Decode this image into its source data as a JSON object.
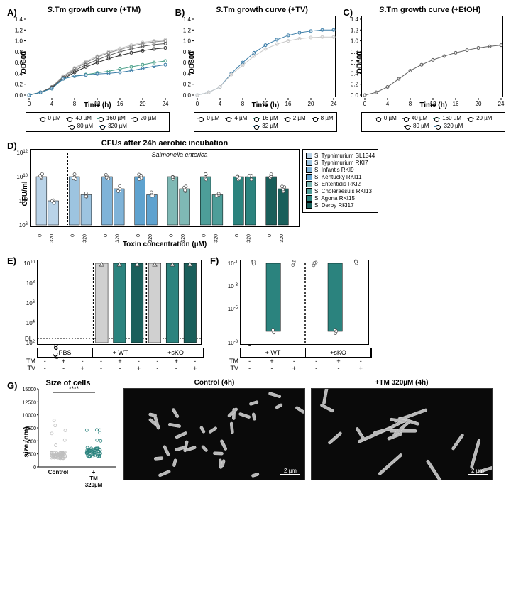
{
  "panelA": {
    "label": "A)",
    "title": "S.Tm growth curve (+TM)",
    "ylabel": "OD600",
    "xlabel": "Time (h)",
    "yticks": [
      "0.0",
      "0.2",
      "0.4",
      "0.6",
      "0.8",
      "1.0",
      "1.2",
      "1.4"
    ],
    "xticks": [
      "0",
      "4",
      "8",
      "12",
      "16",
      "20",
      "24"
    ],
    "legend": [
      {
        "label": "0 µM",
        "color": "#c9c9c9"
      },
      {
        "label": "40 µM",
        "color": "#5b5b5b"
      },
      {
        "label": "160 µM",
        "color": "#4aa08a"
      },
      {
        "label": "20 µM",
        "color": "#8a8a8a"
      },
      {
        "label": "80 µM",
        "color": "#2f2f2f"
      },
      {
        "label": "320 µM",
        "color": "#3b7da8"
      }
    ],
    "series": {
      "0": {
        "color": "#c9c9c9",
        "pts": [
          0,
          0.05,
          0.15,
          0.35,
          0.5,
          0.62,
          0.72,
          0.8,
          0.86,
          0.92,
          0.97,
          1.0,
          1.02
        ]
      },
      "20": {
        "color": "#8a8a8a",
        "pts": [
          0,
          0.05,
          0.15,
          0.34,
          0.48,
          0.6,
          0.7,
          0.78,
          0.84,
          0.9,
          0.95,
          0.98,
          1.0
        ]
      },
      "40": {
        "color": "#5b5b5b",
        "pts": [
          0,
          0.05,
          0.14,
          0.32,
          0.45,
          0.56,
          0.65,
          0.73,
          0.8,
          0.85,
          0.9,
          0.93,
          0.95
        ]
      },
      "80": {
        "color": "#2f2f2f",
        "pts": [
          0,
          0.05,
          0.13,
          0.3,
          0.42,
          0.52,
          0.6,
          0.67,
          0.73,
          0.78,
          0.82,
          0.85,
          0.87
        ]
      },
      "160": {
        "color": "#4aa08a",
        "pts": [
          0,
          0.05,
          0.12,
          0.3,
          0.35,
          0.38,
          0.41,
          0.44,
          0.48,
          0.52,
          0.56,
          0.6,
          0.63
        ]
      },
      "320": {
        "color": "#3b7da8",
        "pts": [
          0,
          0.05,
          0.12,
          0.3,
          0.35,
          0.37,
          0.39,
          0.4,
          0.42,
          0.45,
          0.49,
          0.53,
          0.56
        ]
      }
    }
  },
  "panelB": {
    "label": "B)",
    "title": "S.Tm growth curve (+TV)",
    "ylabel": "OD600",
    "xlabel": "Time (h)",
    "yticks": [
      "0.0",
      "0.2",
      "0.4",
      "0.6",
      "0.8",
      "1.0",
      "1.2",
      "1.4"
    ],
    "xticks": [
      "0",
      "4",
      "8",
      "12",
      "16",
      "20",
      "24"
    ],
    "legend": [
      {
        "label": "0 µM",
        "color": "#c9c9c9"
      },
      {
        "label": "4 µM",
        "color": "#5b5b5b"
      },
      {
        "label": "16 µM",
        "color": "#4aa08a"
      },
      {
        "label": "2 µM",
        "color": "#8a8a8a"
      },
      {
        "label": "8 µM",
        "color": "#2f2f2f"
      },
      {
        "label": "32 µM",
        "color": "#3b7da8"
      }
    ],
    "series": {
      "h": {
        "color": "#3b7da8",
        "pts": [
          0,
          0.05,
          0.15,
          0.4,
          0.6,
          0.78,
          0.92,
          1.02,
          1.1,
          1.15,
          1.18,
          1.2,
          1.2
        ]
      },
      "l": {
        "color": "#c9c9c9",
        "pts": [
          0,
          0.05,
          0.15,
          0.38,
          0.55,
          0.72,
          0.85,
          0.94,
          1.0,
          1.04,
          1.06,
          1.07,
          1.07
        ]
      }
    }
  },
  "panelC": {
    "label": "C)",
    "title": "S.Tm growth curve (+EtOH)",
    "ylabel": "OD600",
    "xlabel": "Time (h)",
    "yticks": [
      "0.0",
      "0.2",
      "0.4",
      "0.6",
      "0.8",
      "1.0",
      "1.2",
      "1.4"
    ],
    "xticks": [
      "0",
      "4",
      "8",
      "12",
      "16",
      "20",
      "24"
    ],
    "legend": [
      {
        "label": "0 µM",
        "color": "#c9c9c9"
      },
      {
        "label": "40 µM",
        "color": "#5b5b5b"
      },
      {
        "label": "160 µM",
        "color": "#4aa08a"
      },
      {
        "label": "20 µM",
        "color": "#8a8a8a"
      },
      {
        "label": "80 µM",
        "color": "#2f2f2f"
      },
      {
        "label": "320 µM",
        "color": "#3b7da8"
      }
    ],
    "series": {
      "all": {
        "color": "#606060",
        "pts": [
          0,
          0.05,
          0.15,
          0.3,
          0.45,
          0.56,
          0.65,
          0.72,
          0.78,
          0.83,
          0.87,
          0.9,
          0.92
        ]
      }
    }
  },
  "panelD": {
    "label": "D)",
    "title": "CFUs after 24h aerobic incubation",
    "subtitle": "Salmonella enterica",
    "ylabel": "CFU/ml",
    "xlabel": "Toxin concentration (µM)",
    "yticks": [
      "10^6",
      "10^8",
      "10^10",
      "10^12"
    ],
    "xvals": [
      "0",
      "320",
      "0",
      "320",
      "0",
      "320",
      "0",
      "320",
      "0",
      "320",
      "0",
      "320",
      "0",
      "320",
      "0",
      "320"
    ],
    "strains": [
      {
        "name": "S. Typhimurium SL1344",
        "color": "#b9d3e8"
      },
      {
        "name": "S. Typhimurium RKI7",
        "color": "#9dc4e0"
      },
      {
        "name": "S. Infantis RKI9",
        "color": "#7fb3d8"
      },
      {
        "name": "S. Kentucky RKI11",
        "color": "#5ea2cf"
      },
      {
        "name": "S. Enteritidis RKI2",
        "color": "#7fb9b5"
      },
      {
        "name": "S. Choleraesuis RKI13",
        "color": "#4d9e99"
      },
      {
        "name": "S. Agona RKI15",
        "color": "#2b837e"
      },
      {
        "name": "S. Derby RKI17",
        "color": "#1a5f5b"
      }
    ],
    "values0": [
      10,
      10,
      10,
      10,
      10,
      10,
      10,
      10
    ],
    "values320": [
      8,
      8.5,
      9,
      8.5,
      9,
      8.5,
      10,
      9
    ]
  },
  "panelE": {
    "label": "E)",
    "ylabel": "K. oxytoca CFU/ml in TLB",
    "yticks": [
      "10^2",
      "10^4",
      "10^6",
      "10^8",
      "10^10"
    ],
    "dl_label": "DL",
    "groups": [
      "PBS",
      "+ WT",
      "+sKO"
    ],
    "rows": [
      "TM",
      "TV"
    ],
    "matrix": [
      [
        "-",
        "+",
        "-"
      ],
      [
        "-",
        "-",
        "+"
      ]
    ],
    "bars": [
      {
        "grp": 0,
        "cond": 0,
        "val": null,
        "color": "#d0d0d0"
      },
      {
        "grp": 0,
        "cond": 1,
        "val": null,
        "color": "#2b837e"
      },
      {
        "grp": 0,
        "cond": 2,
        "val": null,
        "color": "#1a5f5b"
      },
      {
        "grp": 1,
        "cond": 0,
        "val": 10,
        "color": "#d0d0d0"
      },
      {
        "grp": 1,
        "cond": 1,
        "val": 10,
        "color": "#2b837e"
      },
      {
        "grp": 1,
        "cond": 2,
        "val": 10,
        "color": "#1a5f5b"
      },
      {
        "grp": 2,
        "cond": 0,
        "val": 10,
        "color": "#d0d0d0"
      },
      {
        "grp": 2,
        "cond": 1,
        "val": 10,
        "color": "#2b837e"
      },
      {
        "grp": 2,
        "cond": 2,
        "val": 10,
        "color": "#1a5f5b"
      }
    ]
  },
  "panelF": {
    "label": "F)",
    "ylabel": "competitive index",
    "yticks": [
      "10^-8",
      "10^-5",
      "10^-3",
      "10^-1"
    ],
    "groups": [
      "+ WT",
      "+sKO"
    ],
    "rows": [
      "TM",
      "TV"
    ],
    "matrix": [
      [
        "-",
        "+",
        "-"
      ],
      [
        "-",
        "-",
        "+"
      ]
    ],
    "bars": [
      {
        "grp": 0,
        "cond": 0,
        "val": -1,
        "color": "#d0d0d0"
      },
      {
        "grp": 0,
        "cond": 1,
        "val": -7,
        "color": "#2b837e"
      },
      {
        "grp": 0,
        "cond": 2,
        "val": -1,
        "color": "#1a5f5b"
      },
      {
        "grp": 1,
        "cond": 0,
        "val": -1,
        "color": "#d0d0d0"
      },
      {
        "grp": 1,
        "cond": 1,
        "val": -7,
        "color": "#2b837e"
      },
      {
        "grp": 1,
        "cond": 2,
        "val": -1,
        "color": "#1a5f5b"
      }
    ]
  },
  "panelG": {
    "label": "G)",
    "title": "Size of cells",
    "ylabel": "size (nm)",
    "yticks": [
      "0",
      "2500",
      "5000",
      "7500",
      "10000",
      "12500",
      "15000"
    ],
    "sig": "****",
    "xcat": [
      "Control",
      "+ TM 320µM"
    ],
    "micro1": "Control (4h)",
    "micro2": "+TM 320µM (4h)",
    "scale": "2 µm",
    "scatter_colors": {
      "control": "#bfbfbf",
      "tm": "#2b837e"
    }
  }
}
